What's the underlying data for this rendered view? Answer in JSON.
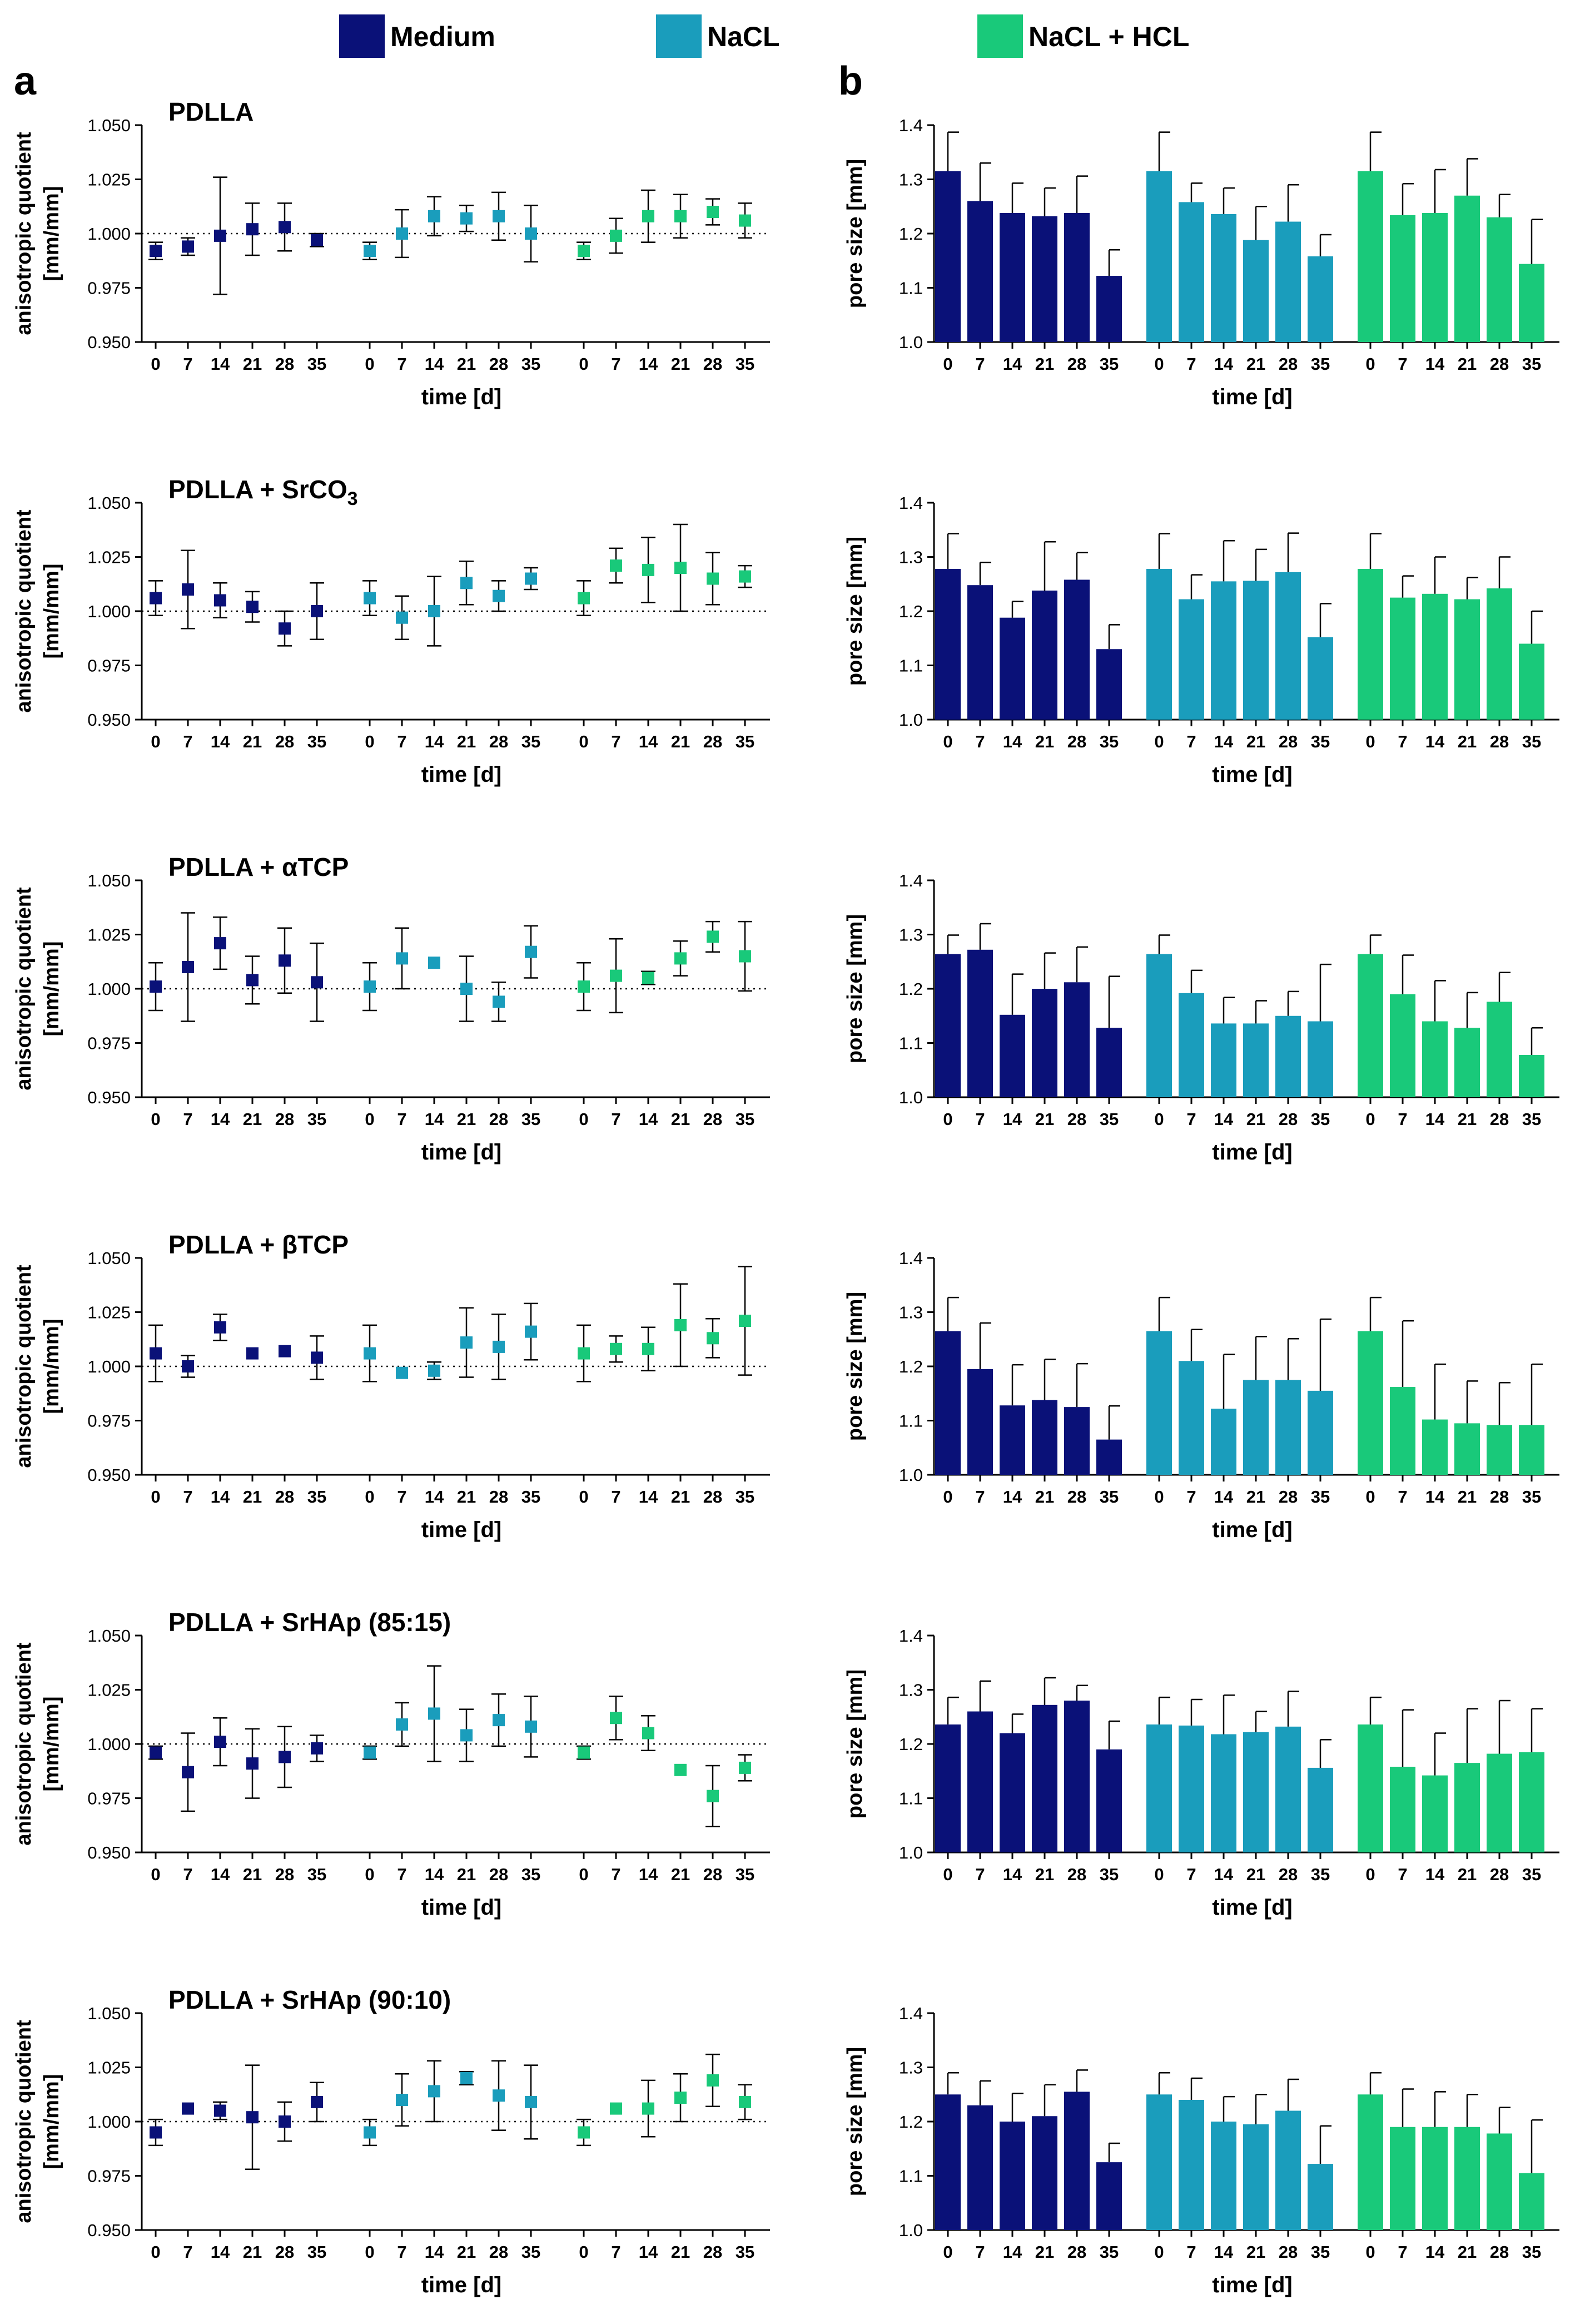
{
  "legend": [
    {
      "label": "Medium",
      "color": "#0a1178"
    },
    {
      "label": "NaCL",
      "color": "#1a9dbc"
    },
    {
      "label": "NaCL + HCL",
      "color": "#19c97a"
    }
  ],
  "panel_labels": {
    "a": "a",
    "b": "b"
  },
  "colors": {
    "medium": "#0a1178",
    "nacl": "#1a9dbc",
    "naclhcl": "#19c97a"
  },
  "chart_data": [
    {
      "type": "scatter",
      "panel": "a",
      "title": "PDLLA",
      "title_sub": "",
      "ylabel": "anisotropic quotient",
      "ylabel2": "[mm/mm]",
      "xlabel": "time [d]",
      "ylim": [
        0.95,
        1.05
      ],
      "yticks": [
        "0.950",
        "0.975",
        "1.000",
        "1.025",
        "1.050"
      ],
      "reference_line": 1.0,
      "x": [
        "0",
        "7",
        "14",
        "21",
        "28",
        "35"
      ],
      "series": [
        {
          "name": "Medium",
          "values": [
            0.992,
            0.994,
            0.999,
            1.002,
            1.003,
            0.997
          ],
          "errors": [
            0.004,
            0.004,
            0.027,
            0.012,
            0.011,
            0.003
          ]
        },
        {
          "name": "NaCL",
          "values": [
            0.992,
            1.0,
            1.008,
            1.007,
            1.008,
            1.0
          ],
          "errors": [
            0.004,
            0.011,
            0.009,
            0.006,
            0.011,
            0.013
          ]
        },
        {
          "name": "NaCL + HCL",
          "values": [
            0.992,
            0.999,
            1.008,
            1.008,
            1.01,
            1.006
          ],
          "errors": [
            0.004,
            0.008,
            0.012,
            0.01,
            0.006,
            0.008
          ]
        }
      ]
    },
    {
      "type": "bar",
      "panel": "b",
      "title": "",
      "ylabel": "pore size [mm]",
      "xlabel": "time [d]",
      "ylim": [
        1.0,
        1.4
      ],
      "yticks": [
        "1.0",
        "1.1",
        "1.2",
        "1.3",
        "1.4"
      ],
      "x": [
        "0",
        "7",
        "14",
        "21",
        "28",
        "35"
      ],
      "series": [
        {
          "name": "Medium",
          "values": [
            1.315,
            1.26,
            1.238,
            1.232,
            1.238,
            1.122
          ],
          "errors": [
            0.072,
            0.07,
            0.055,
            0.052,
            0.068,
            0.048
          ]
        },
        {
          "name": "NaCL",
          "values": [
            1.315,
            1.258,
            1.236,
            1.188,
            1.222,
            1.158
          ],
          "errors": [
            0.072,
            0.035,
            0.048,
            0.062,
            0.068,
            0.04
          ]
        },
        {
          "name": "NaCL + HCL",
          "values": [
            1.315,
            1.234,
            1.238,
            1.27,
            1.23,
            1.144
          ],
          "errors": [
            0.072,
            0.058,
            0.08,
            0.068,
            0.042,
            0.082
          ]
        }
      ]
    },
    {
      "type": "scatter",
      "panel": "a",
      "title": "PDLLA + SrCO",
      "title_sub": "3",
      "ylabel": "anisotropic quotient",
      "ylabel2": "[mm/mm]",
      "xlabel": "time [d]",
      "ylim": [
        0.95,
        1.05
      ],
      "yticks": [
        "0.950",
        "0.975",
        "1.000",
        "1.025",
        "1.050"
      ],
      "reference_line": 1.0,
      "x": [
        "0",
        "7",
        "14",
        "21",
        "28",
        "35"
      ],
      "series": [
        {
          "name": "Medium",
          "values": [
            1.006,
            1.01,
            1.005,
            1.002,
            0.992,
            1.0
          ],
          "errors": [
            0.008,
            0.018,
            0.008,
            0.007,
            0.008,
            0.013
          ]
        },
        {
          "name": "NaCL",
          "values": [
            1.006,
            0.997,
            1.0,
            1.013,
            1.007,
            1.015
          ],
          "errors": [
            0.008,
            0.01,
            0.016,
            0.01,
            0.007,
            0.005
          ]
        },
        {
          "name": "NaCL + HCL",
          "values": [
            1.006,
            1.021,
            1.019,
            1.02,
            1.015,
            1.016
          ],
          "errors": [
            0.008,
            0.008,
            0.015,
            0.02,
            0.012,
            0.005
          ]
        }
      ]
    },
    {
      "type": "bar",
      "panel": "b",
      "title": "",
      "ylabel": "pore size [mm]",
      "xlabel": "time [d]",
      "ylim": [
        1.0,
        1.4
      ],
      "yticks": [
        "1.0",
        "1.1",
        "1.2",
        "1.3",
        "1.4"
      ],
      "x": [
        "0",
        "7",
        "14",
        "21",
        "28",
        "35"
      ],
      "series": [
        {
          "name": "Medium",
          "values": [
            1.278,
            1.248,
            1.188,
            1.238,
            1.258,
            1.13
          ],
          "errors": [
            0.065,
            0.042,
            0.03,
            0.09,
            0.05,
            0.045
          ]
        },
        {
          "name": "NaCL",
          "values": [
            1.278,
            1.222,
            1.255,
            1.256,
            1.272,
            1.152
          ],
          "errors": [
            0.065,
            0.045,
            0.075,
            0.058,
            0.072,
            0.062
          ]
        },
        {
          "name": "NaCL + HCL",
          "values": [
            1.278,
            1.225,
            1.232,
            1.222,
            1.242,
            1.14
          ],
          "errors": [
            0.065,
            0.04,
            0.068,
            0.04,
            0.058,
            0.06
          ]
        }
      ]
    },
    {
      "type": "scatter",
      "panel": "a",
      "title": "PDLLA + αTCP",
      "title_sub": "",
      "ylabel": "anisotropic quotient",
      "ylabel2": "[mm/mm]",
      "xlabel": "time [d]",
      "ylim": [
        0.95,
        1.05
      ],
      "yticks": [
        "0.950",
        "0.975",
        "1.000",
        "1.025",
        "1.050"
      ],
      "reference_line": 1.0,
      "x": [
        "0",
        "7",
        "14",
        "21",
        "28",
        "35"
      ],
      "series": [
        {
          "name": "Medium",
          "values": [
            1.001,
            1.01,
            1.021,
            1.004,
            1.013,
            1.003
          ],
          "errors": [
            0.011,
            0.025,
            0.012,
            0.011,
            0.015,
            0.018
          ]
        },
        {
          "name": "NaCL",
          "values": [
            1.001,
            1.014,
            1.012,
            1.0,
            0.994,
            1.017
          ],
          "errors": [
            0.011,
            0.014,
            0.0,
            0.015,
            0.009,
            0.012
          ]
        },
        {
          "name": "NaCL + HCL",
          "values": [
            1.001,
            1.006,
            1.005,
            1.014,
            1.024,
            1.015
          ],
          "errors": [
            0.011,
            0.017,
            0.003,
            0.008,
            0.007,
            0.016
          ]
        }
      ]
    },
    {
      "type": "bar",
      "panel": "b",
      "title": "",
      "ylabel": "pore size [mm]",
      "xlabel": "time [d]",
      "ylim": [
        1.0,
        1.4
      ],
      "yticks": [
        "1.0",
        "1.1",
        "1.2",
        "1.3",
        "1.4"
      ],
      "x": [
        "0",
        "7",
        "14",
        "21",
        "28",
        "35"
      ],
      "series": [
        {
          "name": "Medium",
          "values": [
            1.264,
            1.272,
            1.152,
            1.2,
            1.212,
            1.128
          ],
          "errors": [
            0.035,
            0.048,
            0.075,
            0.066,
            0.065,
            0.095
          ]
        },
        {
          "name": "NaCL",
          "values": [
            1.264,
            1.192,
            1.136,
            1.136,
            1.15,
            1.14
          ],
          "errors": [
            0.035,
            0.042,
            0.048,
            0.042,
            0.045,
            0.105
          ]
        },
        {
          "name": "NaCL + HCL",
          "values": [
            1.264,
            1.19,
            1.14,
            1.128,
            1.176,
            1.078
          ],
          "errors": [
            0.035,
            0.072,
            0.075,
            0.065,
            0.054,
            0.05
          ]
        }
      ]
    },
    {
      "type": "scatter",
      "panel": "a",
      "title": "PDLLA + βTCP",
      "title_sub": "",
      "ylabel": "anisotropic quotient",
      "ylabel2": "[mm/mm]",
      "xlabel": "time [d]",
      "ylim": [
        0.95,
        1.05
      ],
      "yticks": [
        "0.950",
        "0.975",
        "1.000",
        "1.025",
        "1.050"
      ],
      "reference_line": 1.0,
      "x": [
        "0",
        "7",
        "14",
        "21",
        "28",
        "35"
      ],
      "series": [
        {
          "name": "Medium",
          "values": [
            1.006,
            1.0,
            1.018,
            1.006,
            1.007,
            1.004
          ],
          "errors": [
            0.013,
            0.005,
            0.006,
            0.0,
            0.0,
            0.01
          ]
        },
        {
          "name": "NaCL",
          "values": [
            1.006,
            0.997,
            0.998,
            1.011,
            1.009,
            1.016
          ],
          "errors": [
            0.013,
            0.0,
            0.004,
            0.016,
            0.015,
            0.013
          ]
        },
        {
          "name": "NaCL + HCL",
          "values": [
            1.006,
            1.008,
            1.008,
            1.019,
            1.013,
            1.021
          ],
          "errors": [
            0.013,
            0.006,
            0.01,
            0.019,
            0.009,
            0.025
          ]
        }
      ]
    },
    {
      "type": "bar",
      "panel": "b",
      "title": "",
      "ylabel": "pore size [mm]",
      "xlabel": "time [d]",
      "ylim": [
        1.0,
        1.4
      ],
      "yticks": [
        "1.0",
        "1.1",
        "1.2",
        "1.3",
        "1.4"
      ],
      "x": [
        "0",
        "7",
        "14",
        "21",
        "28",
        "35"
      ],
      "series": [
        {
          "name": "Medium",
          "values": [
            1.265,
            1.195,
            1.128,
            1.138,
            1.125,
            1.065
          ],
          "errors": [
            0.062,
            0.085,
            0.075,
            0.075,
            0.08,
            0.062
          ]
        },
        {
          "name": "NaCL",
          "values": [
            1.265,
            1.21,
            1.122,
            1.175,
            1.175,
            1.155
          ],
          "errors": [
            0.062,
            0.058,
            0.1,
            0.08,
            0.076,
            0.132
          ]
        },
        {
          "name": "NaCL + HCL",
          "values": [
            1.265,
            1.162,
            1.102,
            1.095,
            1.092,
            1.092
          ],
          "errors": [
            0.062,
            0.122,
            0.102,
            0.078,
            0.078,
            0.112
          ]
        }
      ]
    },
    {
      "type": "scatter",
      "panel": "a",
      "title": "PDLLA + SrHAp (85:15)",
      "title_sub": "",
      "ylabel": "anisotropic quotient",
      "ylabel2": "[mm/mm]",
      "xlabel": "time [d]",
      "ylim": [
        0.95,
        1.05
      ],
      "yticks": [
        "0.950",
        "0.975",
        "1.000",
        "1.025",
        "1.050"
      ],
      "reference_line": 1.0,
      "x": [
        "0",
        "7",
        "14",
        "21",
        "28",
        "35"
      ],
      "series": [
        {
          "name": "Medium",
          "values": [
            0.996,
            0.987,
            1.001,
            0.991,
            0.994,
            0.998
          ],
          "errors": [
            0.003,
            0.018,
            0.011,
            0.016,
            0.014,
            0.006
          ]
        },
        {
          "name": "NaCL",
          "values": [
            0.996,
            1.009,
            1.014,
            1.004,
            1.011,
            1.008
          ],
          "errors": [
            0.003,
            0.01,
            0.022,
            0.012,
            0.012,
            0.014
          ]
        },
        {
          "name": "NaCL + HCL",
          "values": [
            0.996,
            1.012,
            1.005,
            0.988,
            0.976,
            0.989
          ],
          "errors": [
            0.003,
            0.01,
            0.008,
            0.0,
            0.014,
            0.006
          ]
        }
      ]
    },
    {
      "type": "bar",
      "panel": "b",
      "title": "",
      "ylabel": "pore size [mm]",
      "xlabel": "time [d]",
      "ylim": [
        1.0,
        1.4
      ],
      "yticks": [
        "1.0",
        "1.1",
        "1.2",
        "1.3",
        "1.4"
      ],
      "x": [
        "0",
        "7",
        "14",
        "21",
        "28",
        "35"
      ],
      "series": [
        {
          "name": "Medium",
          "values": [
            1.236,
            1.26,
            1.22,
            1.272,
            1.28,
            1.19
          ],
          "errors": [
            0.05,
            0.056,
            0.035,
            0.05,
            0.028,
            0.052
          ]
        },
        {
          "name": "NaCL",
          "values": [
            1.236,
            1.234,
            1.218,
            1.222,
            1.232,
            1.156
          ],
          "errors": [
            0.05,
            0.048,
            0.072,
            0.038,
            0.065,
            0.052
          ]
        },
        {
          "name": "NaCL + HCL",
          "values": [
            1.236,
            1.158,
            1.142,
            1.165,
            1.182,
            1.185
          ],
          "errors": [
            0.05,
            0.105,
            0.078,
            0.1,
            0.098,
            0.08
          ]
        }
      ]
    },
    {
      "type": "scatter",
      "panel": "a",
      "title": "PDLLA + SrHAp (90:10)",
      "title_sub": "",
      "ylabel": "anisotropic quotient",
      "ylabel2": "[mm/mm]",
      "xlabel": "time [d]",
      "ylim": [
        0.95,
        1.05
      ],
      "yticks": [
        "0.950",
        "0.975",
        "1.000",
        "1.025",
        "1.050"
      ],
      "reference_line": 1.0,
      "x": [
        "0",
        "7",
        "14",
        "21",
        "28",
        "35"
      ],
      "series": [
        {
          "name": "Medium",
          "values": [
            0.995,
            1.006,
            1.005,
            1.002,
            1.0,
            1.009
          ],
          "errors": [
            0.006,
            0.0,
            0.004,
            0.024,
            0.009,
            0.009
          ]
        },
        {
          "name": "NaCL",
          "values": [
            0.995,
            1.01,
            1.014,
            1.02,
            1.012,
            1.009
          ],
          "errors": [
            0.006,
            0.012,
            0.014,
            0.003,
            0.016,
            0.017
          ]
        },
        {
          "name": "NaCL + HCL",
          "values": [
            0.995,
            1.006,
            1.006,
            1.011,
            1.019,
            1.009
          ],
          "errors": [
            0.006,
            0.0,
            0.013,
            0.011,
            0.012,
            0.008
          ]
        }
      ]
    },
    {
      "type": "bar",
      "panel": "b",
      "title": "",
      "ylabel": "pore size [mm]",
      "xlabel": "time [d]",
      "ylim": [
        1.0,
        1.4
      ],
      "yticks": [
        "1.0",
        "1.1",
        "1.2",
        "1.3",
        "1.4"
      ],
      "x": [
        "0",
        "7",
        "14",
        "21",
        "28",
        "35"
      ],
      "series": [
        {
          "name": "Medium",
          "values": [
            1.25,
            1.23,
            1.2,
            1.21,
            1.255,
            1.125
          ],
          "errors": [
            0.04,
            0.045,
            0.052,
            0.058,
            0.04,
            0.035
          ]
        },
        {
          "name": "NaCL",
          "values": [
            1.25,
            1.24,
            1.2,
            1.195,
            1.22,
            1.122
          ],
          "errors": [
            0.04,
            0.04,
            0.046,
            0.055,
            0.058,
            0.07
          ]
        },
        {
          "name": "NaCL + HCL",
          "values": [
            1.25,
            1.19,
            1.19,
            1.19,
            1.178,
            1.105
          ],
          "errors": [
            0.04,
            0.07,
            0.065,
            0.06,
            0.048,
            0.098
          ]
        }
      ]
    }
  ]
}
